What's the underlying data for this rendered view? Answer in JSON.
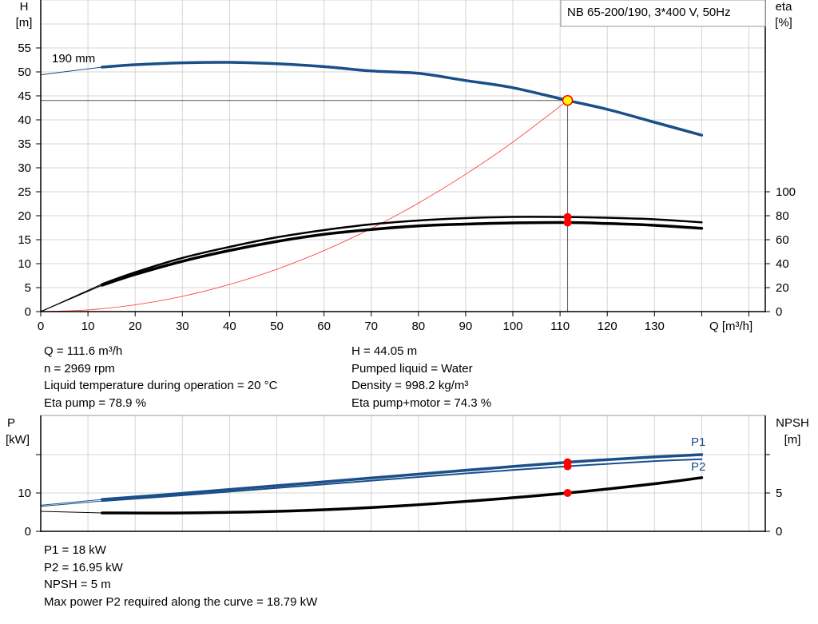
{
  "chart_data": [
    {
      "type": "line",
      "title": "NB 65-200/190, 3*400 V, 50Hz",
      "xlabel": "Q [m³/h]",
      "ylabel_left": "H",
      "ylabel_left_unit": "[m]",
      "ylabel_right": "eta",
      "ylabel_right_unit": "[%]",
      "xlim": [
        0,
        150
      ],
      "ylim_left": [
        0,
        65
      ],
      "ylim_right": [
        0,
        100
      ],
      "x_ticks": [
        "0",
        "10",
        "20",
        "30",
        "40",
        "50",
        "60",
        "70",
        "80",
        "90",
        "100",
        "110",
        "120",
        "130"
      ],
      "y_ticks_left": [
        "0",
        "5",
        "10",
        "15",
        "20",
        "25",
        "30",
        "35",
        "40",
        "45",
        "50",
        "55"
      ],
      "y_ticks_right": [
        "0",
        "20",
        "40",
        "60",
        "80",
        "100"
      ],
      "grid": true,
      "impeller_label": "190 mm",
      "series": [
        {
          "key": "head",
          "axis": "left",
          "color": "#1a4f8a",
          "x": [
            0,
            13,
            20,
            30,
            40,
            50,
            60,
            70,
            80,
            90,
            100,
            111.6,
            120,
            130,
            140
          ],
          "y": [
            49.4,
            51,
            51.5,
            51.9,
            52,
            51.7,
            51.1,
            50.2,
            49.7,
            48.2,
            46.7,
            44.05,
            42.2,
            39.5,
            36.8
          ]
        },
        {
          "key": "eta_pump",
          "axis": "right",
          "color": "#000000",
          "x": [
            0,
            13,
            20,
            30,
            40,
            50,
            60,
            70,
            80,
            90,
            100,
            111.6,
            120,
            130,
            140
          ],
          "y": [
            0,
            23,
            32.8,
            44.8,
            54,
            62,
            68,
            72.8,
            76,
            78,
            79,
            78.9,
            78.3,
            77,
            74.5
          ]
        },
        {
          "key": "eta_pump_motor",
          "axis": "right",
          "color": "#000000",
          "x": [
            0,
            13,
            20,
            30,
            40,
            50,
            60,
            70,
            80,
            90,
            100,
            111.6,
            120,
            130,
            140
          ],
          "y": [
            0,
            22,
            31,
            42,
            51,
            58.5,
            64.5,
            68.5,
            71.5,
            73,
            74,
            74.3,
            73.5,
            72,
            69.5
          ]
        },
        {
          "key": "system",
          "axis": "left",
          "color": "#ff3030",
          "x": [
            0,
            10,
            20,
            30,
            40,
            50,
            60,
            70,
            80,
            90,
            100,
            111.6
          ],
          "y": [
            0,
            0.35,
            1.41,
            3.18,
            5.66,
            8.84,
            12.73,
            17.33,
            22.63,
            28.65,
            35.37,
            44.05
          ]
        }
      ],
      "operating_point": {
        "Q": 111.6,
        "H": 44.05,
        "eta_pump": 78.9,
        "eta_pump_motor": 74.3
      }
    },
    {
      "type": "line",
      "ylabel_left": "P",
      "ylabel_left_unit": "[kW]",
      "ylabel_right": "NPSH",
      "ylabel_right_unit": "[m]",
      "xlim": [
        0,
        150
      ],
      "ylim_left": [
        0,
        30
      ],
      "ylim_right": [
        0,
        15
      ],
      "y_ticks_left": [
        "0",
        "10"
      ],
      "y_ticks_right": [
        "0",
        "5"
      ],
      "grid": true,
      "series": [
        {
          "key": "p1",
          "name": "P1",
          "axis": "left",
          "color": "#1a4f8a",
          "x": [
            0,
            13,
            30,
            50,
            70,
            90,
            111.6,
            130,
            140
          ],
          "y": [
            6.8,
            8.3,
            9.9,
            11.9,
            13.9,
            15.9,
            18,
            19.4,
            20
          ]
        },
        {
          "key": "p2",
          "name": "P2",
          "axis": "left",
          "color": "#1a4f8a",
          "x": [
            0,
            13,
            30,
            50,
            70,
            90,
            111.6,
            130,
            140
          ],
          "y": [
            6.5,
            7.9,
            9.4,
            11.3,
            13.2,
            15.1,
            16.95,
            18.3,
            18.79
          ]
        },
        {
          "key": "npsh",
          "axis": "right",
          "color": "#000000",
          "x": [
            0,
            13,
            30,
            50,
            70,
            90,
            111.6,
            130,
            140
          ],
          "y": [
            2.6,
            2.4,
            2.4,
            2.6,
            3.1,
            3.9,
            5,
            6.2,
            7
          ]
        }
      ],
      "operating_point": {
        "P1": 18,
        "P2": 16.95,
        "NPSH": 5
      }
    }
  ],
  "info_top_left": [
    "Q = 111.6 m³/h",
    "n = 2969 rpm",
    "Liquid temperature during operation = 20 °C",
    "Eta pump = 78.9 %"
  ],
  "info_top_right": [
    "H = 44.05 m",
    "Pumped liquid = Water",
    "Density = 998.2 kg/m³",
    "Eta pump+motor = 74.3 %"
  ],
  "info_bottom": [
    "P1 = 18 kW",
    "P2 = 16.95 kW",
    "NPSH = 5 m",
    "Max power P2 required along the curve = 18.79 kW"
  ],
  "colors": {
    "curve_blue": "#1a4f8a",
    "system_red": "#ff3030",
    "marker_red": "#ff0000",
    "marker_yellow": "#ffff00",
    "grid": "#d4d4d4"
  }
}
